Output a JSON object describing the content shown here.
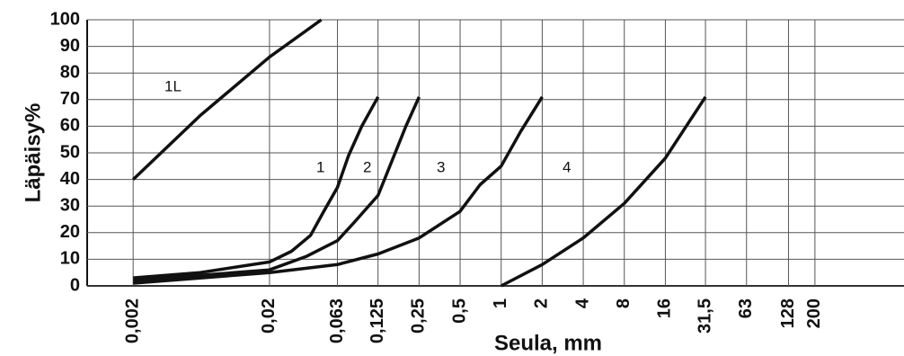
{
  "chart_data": {
    "type": "line",
    "ylabel": "Läpäisy%",
    "xlabel": "Seula, mm",
    "xscale": "log",
    "grid": true,
    "xlim": [
      0.00092,
      900
    ],
    "ylim": [
      0,
      100
    ],
    "yticks": [
      0,
      10,
      20,
      30,
      40,
      50,
      60,
      70,
      80,
      90,
      100
    ],
    "xticks": [
      {
        "value": 0.002,
        "label": "0,002"
      },
      {
        "value": 0.02,
        "label": "0,02"
      },
      {
        "value": 0.063,
        "label": "0,063"
      },
      {
        "value": 0.125,
        "label": "0,125"
      },
      {
        "value": 0.25,
        "label": "0,25"
      },
      {
        "value": 0.5,
        "label": "0,5"
      },
      1,
      2,
      4,
      8,
      16,
      {
        "value": 31.5,
        "label": "31,5"
      },
      63,
      128,
      200
    ],
    "series": [
      {
        "name": "1L",
        "color": "#111111",
        "x": [
          0.002,
          0.0062,
          0.02,
          0.048
        ],
        "values": [
          40,
          64,
          86,
          100
        ]
      },
      {
        "name": "1",
        "color": "#111111",
        "x": [
          0.002,
          0.0062,
          0.02,
          0.029,
          0.04,
          0.05,
          0.063,
          0.076,
          0.095,
          0.125
        ],
        "values": [
          3,
          5,
          9,
          13,
          19,
          28,
          37,
          49,
          60,
          71
        ]
      },
      {
        "name": "2",
        "color": "#111111",
        "x": [
          0.002,
          0.02,
          0.037,
          0.063,
          0.084,
          0.125,
          0.167,
          0.2,
          0.25
        ],
        "values": [
          2,
          6,
          11,
          17,
          24,
          34,
          50,
          60,
          71
        ]
      },
      {
        "name": "3",
        "color": "#111111",
        "x": [
          0.002,
          0.02,
          0.063,
          0.125,
          0.25,
          0.5,
          0.7,
          1,
          1.39,
          2
        ],
        "values": [
          1,
          5,
          8,
          12,
          18,
          28,
          38,
          45,
          58,
          71
        ]
      },
      {
        "name": "4",
        "color": "#111111",
        "x": [
          1,
          2,
          4,
          8,
          16,
          31.5
        ],
        "values": [
          0,
          8,
          18,
          31,
          48,
          71
        ]
      }
    ]
  }
}
